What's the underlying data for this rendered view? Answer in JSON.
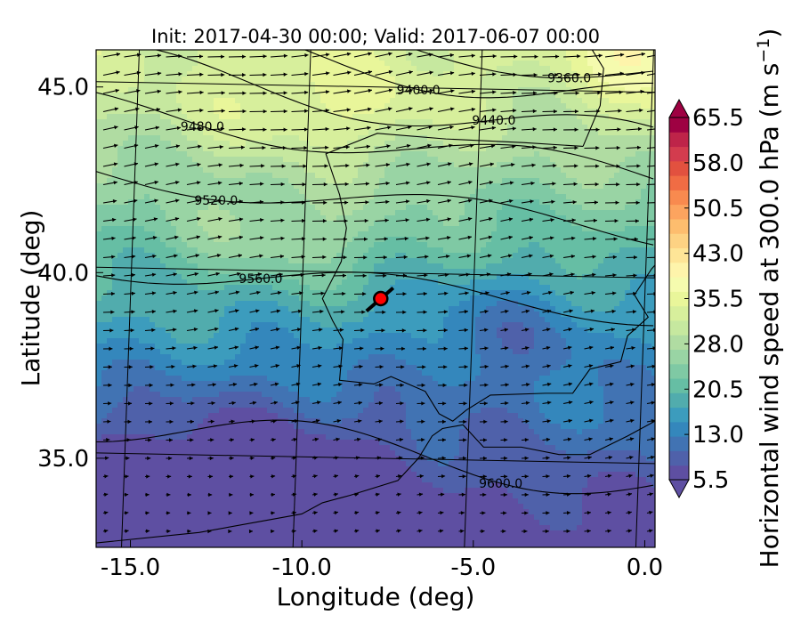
{
  "chart_data": {
    "type": "heatmap",
    "title": "Init: 2017-04-30 00:00; Valid: 2017-06-07 00:00",
    "xlabel": "Longitude (deg)",
    "ylabel": "Latitude (deg)",
    "xlim": [
      -16.0,
      0.3
    ],
    "ylim": [
      32.6,
      46.0
    ],
    "x_ticks": [
      {
        "value": -15.0,
        "label": "-15.0"
      },
      {
        "value": -10.0,
        "label": "-10.0"
      },
      {
        "value": -5.0,
        "label": "-5.0"
      },
      {
        "value": 0.0,
        "label": "0.0"
      }
    ],
    "y_ticks": [
      {
        "value": 35.0,
        "label": "35.0"
      },
      {
        "value": 40.0,
        "label": "40.0"
      },
      {
        "value": 45.0,
        "label": "45.0"
      }
    ],
    "colorbar": {
      "label": "Horizontal wind speed at 300.0 hPa (m s",
      "label_superscript": "−1",
      "label_close": ")",
      "min": 5.5,
      "max": 65.5,
      "ticks": [
        "5.5",
        "13.0",
        "20.5",
        "28.0",
        "35.5",
        "43.0",
        "50.5",
        "58.0",
        "65.5"
      ],
      "colors": [
        "#5e4fa2",
        "#4f61aa",
        "#4173b3",
        "#3487bc",
        "#3c9cbd",
        "#51acad",
        "#66bea4",
        "#7fc9a4",
        "#99d4a4",
        "#b0dca2",
        "#c6e89f",
        "#d7ef9c",
        "#e9f69a",
        "#f5fbae",
        "#fef4ab",
        "#fee597",
        "#fdd283",
        "#fdbd6e",
        "#fca45f",
        "#f88a4f",
        "#f06c44",
        "#e2513f",
        "#d33c4e",
        "#be2449",
        "#9e0142"
      ],
      "extend": "both"
    },
    "contours": [
      {
        "label": "9360.0"
      },
      {
        "label": "9400.0"
      },
      {
        "label": "9440.0"
      },
      {
        "label": "9480.0"
      },
      {
        "label": "9520.0"
      },
      {
        "label": "9560.0"
      },
      {
        "label": "9600.0"
      }
    ],
    "marker": {
      "lon": -7.7,
      "lat": 39.3,
      "color": "#ff0000"
    },
    "wind_field": "westerly flow, strongest in the north (~30–38 m/s near 45–46°N), weakest in the southwest (~5–10 m/s near 34°N)",
    "grid": true,
    "graticule_lons": [
      -15,
      -10,
      -5,
      0
    ],
    "graticule_lats": [
      35,
      40,
      45
    ]
  }
}
